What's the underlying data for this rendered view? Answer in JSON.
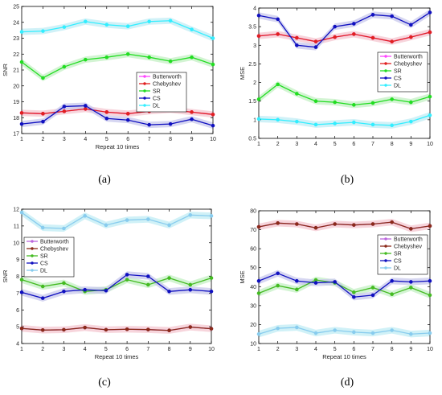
{
  "captions": [
    "(a)",
    "(b)",
    "(c)",
    "(d)"
  ],
  "colors": {
    "Butterworth": "#ff44ff",
    "Chebyshev": "#e02020",
    "SR": "#22dd22",
    "CS": "#1010c0",
    "DL": "#33eeff",
    "Chebyshev_dark": "#8b2a1a",
    "SR_dark": "#44bb22",
    "DL_light": "#88ccee",
    "Butterworth_light": "#bb66dd",
    "band_red": "#f4c7d0",
    "band_green": "#c4f0c4",
    "band_cyan": "#c0ecf4",
    "band_blue": "#c8c8ec"
  },
  "chart_data": [
    {
      "id": "a",
      "type": "line",
      "xlabel": "Repeat 10 times",
      "ylabel": "SNR",
      "xlim": [
        1,
        10
      ],
      "ylim": [
        17,
        25
      ],
      "xticks": [
        1,
        2,
        3,
        4,
        5,
        6,
        7,
        8,
        9,
        10
      ],
      "yticks": [
        17,
        18,
        19,
        20,
        21,
        22,
        23,
        24,
        25
      ],
      "x": [
        1,
        2,
        3,
        4,
        5,
        6,
        7,
        8,
        9,
        10
      ],
      "legend": [
        "Butterworth",
        "Chebyshev",
        "SR",
        "CS",
        "DL"
      ],
      "series": [
        {
          "name": "Butterworth",
          "values": [
            18.3,
            18.25,
            18.4,
            18.55,
            18.35,
            18.25,
            18.4,
            18.5,
            18.35,
            18.2
          ]
        },
        {
          "name": "Chebyshev",
          "values": [
            18.3,
            18.25,
            18.4,
            18.55,
            18.35,
            18.25,
            18.4,
            18.5,
            18.35,
            18.2
          ]
        },
        {
          "name": "SR",
          "values": [
            21.5,
            20.5,
            21.2,
            21.65,
            21.8,
            22.0,
            21.8,
            21.55,
            21.8,
            21.35
          ]
        },
        {
          "name": "CS",
          "values": [
            17.6,
            17.75,
            18.7,
            18.75,
            17.95,
            17.85,
            17.55,
            17.6,
            17.9,
            17.5
          ]
        },
        {
          "name": "DL",
          "values": [
            23.4,
            23.45,
            23.7,
            24.05,
            23.85,
            23.75,
            24.05,
            24.1,
            23.55,
            23.0
          ]
        }
      ],
      "band_colors": {
        "Chebyshev": "band_red",
        "SR": "band_green",
        "CS": "band_blue",
        "DL": "band_cyan"
      }
    },
    {
      "id": "b",
      "type": "line",
      "xlabel": "",
      "ylabel": "MSE",
      "xlim": [
        1,
        10
      ],
      "ylim": [
        0.5,
        4
      ],
      "xticks": [
        1,
        2,
        3,
        4,
        5,
        6,
        7,
        8,
        9,
        10
      ],
      "yticks": [
        0.5,
        1,
        1.5,
        2,
        2.5,
        3,
        3.5,
        4
      ],
      "ytick_labels": [
        "0.5",
        "1",
        "1.5",
        "2",
        "2.5",
        "3",
        "3.5",
        "4"
      ],
      "x": [
        1,
        2,
        3,
        4,
        5,
        6,
        7,
        8,
        9,
        10
      ],
      "legend": [
        "Butterworth",
        "Chebyshev",
        "SR",
        "CS",
        "DL"
      ],
      "series": [
        {
          "name": "Butterworth",
          "values": [
            3.25,
            3.3,
            3.2,
            3.1,
            3.22,
            3.3,
            3.2,
            3.1,
            3.22,
            3.35
          ]
        },
        {
          "name": "Chebyshev",
          "values": [
            3.25,
            3.3,
            3.2,
            3.1,
            3.22,
            3.3,
            3.2,
            3.1,
            3.22,
            3.35
          ]
        },
        {
          "name": "SR",
          "values": [
            1.55,
            1.95,
            1.7,
            1.5,
            1.47,
            1.4,
            1.45,
            1.55,
            1.47,
            1.62
          ]
        },
        {
          "name": "CS",
          "values": [
            3.8,
            3.7,
            3.0,
            2.95,
            3.5,
            3.58,
            3.82,
            3.78,
            3.55,
            3.88
          ]
        },
        {
          "name": "DL",
          "values": [
            1.02,
            1.0,
            0.95,
            0.87,
            0.9,
            0.93,
            0.87,
            0.85,
            0.95,
            1.12
          ]
        }
      ],
      "band_colors": {
        "Chebyshev": "band_red",
        "SR": "band_green",
        "CS": "band_blue",
        "DL": "band_cyan"
      }
    },
    {
      "id": "c",
      "type": "line",
      "xlabel": "Repeat 10 times",
      "ylabel": "SNR",
      "xlim": [
        1,
        10
      ],
      "ylim": [
        4,
        12
      ],
      "xticks": [
        1,
        2,
        3,
        4,
        5,
        6,
        7,
        8,
        9,
        10
      ],
      "yticks": [
        4,
        5,
        6,
        7,
        8,
        9,
        10,
        11,
        12
      ],
      "x": [
        1,
        2,
        3,
        4,
        5,
        6,
        7,
        8,
        9,
        10
      ],
      "legend": [
        "Butterworth",
        "Chebyshev",
        "SR",
        "CS",
        "DL"
      ],
      "series": [
        {
          "name": "Butterworth",
          "values": [
            4.9,
            4.8,
            4.82,
            4.95,
            4.82,
            4.85,
            4.83,
            4.78,
            4.98,
            4.88
          ]
        },
        {
          "name": "Chebyshev",
          "values": [
            4.9,
            4.8,
            4.82,
            4.95,
            4.82,
            4.85,
            4.83,
            4.78,
            4.98,
            4.88
          ]
        },
        {
          "name": "SR",
          "values": [
            7.8,
            7.4,
            7.6,
            7.1,
            7.2,
            7.8,
            7.5,
            7.9,
            7.5,
            7.9
          ]
        },
        {
          "name": "CS",
          "values": [
            7.05,
            6.7,
            7.1,
            7.2,
            7.15,
            8.1,
            8.0,
            7.1,
            7.2,
            7.1
          ]
        },
        {
          "name": "DL",
          "values": [
            11.8,
            10.9,
            10.85,
            11.6,
            11.05,
            11.35,
            11.4,
            11.05,
            11.65,
            11.6
          ]
        }
      ],
      "band_colors": {
        "Chebyshev": "band_red",
        "SR": "band_green",
        "CS": "band_blue",
        "DL": "band_cyan"
      }
    },
    {
      "id": "d",
      "type": "line",
      "xlabel": "Repeat 10 times",
      "ylabel": "MSE",
      "xlim": [
        1,
        10
      ],
      "ylim": [
        10,
        80
      ],
      "xticks": [
        1,
        2,
        3,
        4,
        5,
        6,
        7,
        8,
        9,
        10
      ],
      "yticks": [
        10,
        20,
        30,
        40,
        50,
        60,
        70,
        80
      ],
      "x": [
        1,
        2,
        3,
        4,
        5,
        6,
        7,
        8,
        9,
        10
      ],
      "legend": [
        "Butterworth",
        "Chebyshev",
        "SR",
        "CS",
        "DL"
      ],
      "series": [
        {
          "name": "Butterworth",
          "values": [
            71.5,
            73.5,
            73.0,
            71.0,
            73.0,
            72.5,
            73.0,
            74.0,
            70.5,
            72.0
          ]
        },
        {
          "name": "Chebyshev",
          "values": [
            71.5,
            73.5,
            73.0,
            71.0,
            73.0,
            72.5,
            73.0,
            74.0,
            70.5,
            72.0
          ]
        },
        {
          "name": "SR",
          "values": [
            36.5,
            40.5,
            38.5,
            43.5,
            42.0,
            37.0,
            39.5,
            36.0,
            39.5,
            35.5
          ]
        },
        {
          "name": "CS",
          "values": [
            43.0,
            47.0,
            43.0,
            42.0,
            42.5,
            34.5,
            35.5,
            43.0,
            42.5,
            43.0
          ]
        },
        {
          "name": "DL",
          "values": [
            15.0,
            18.0,
            18.5,
            15.5,
            17.0,
            16.0,
            15.5,
            17.0,
            15.0,
            15.5
          ]
        }
      ],
      "band_colors": {
        "Chebyshev": "band_red",
        "SR": "band_green",
        "CS": "band_blue",
        "DL": "band_cyan"
      }
    }
  ]
}
